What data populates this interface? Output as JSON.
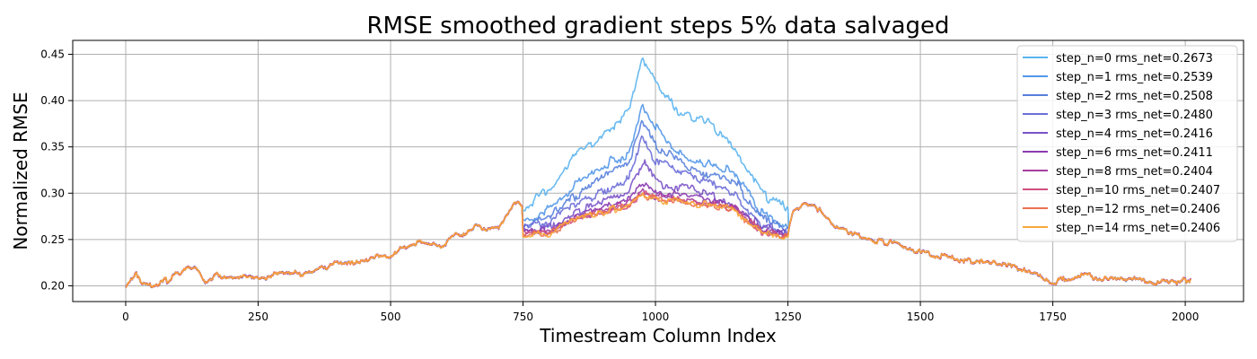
{
  "chart_data": {
    "type": "line",
    "title": "RMSE smoothed gradient steps 5% data salvaged",
    "xlabel": "Timestream Column Index",
    "ylabel": "Normalized RMSE",
    "xlim": [
      -100,
      2110
    ],
    "ylim": [
      0.183,
      0.465
    ],
    "xticks": [
      0,
      250,
      500,
      750,
      1000,
      1250,
      1500,
      1750,
      2000
    ],
    "yticks": [
      0.2,
      0.25,
      0.3,
      0.35,
      0.4,
      0.45
    ],
    "grid": true,
    "legend_position": "top-right",
    "base_curve": {
      "x": [
        0,
        20,
        30,
        60,
        90,
        130,
        150,
        170,
        200,
        260,
        300,
        330,
        400,
        430,
        460,
        500,
        520,
        550,
        600,
        620,
        640,
        660,
        680,
        700,
        720,
        740,
        750,
        1250,
        1260,
        1280,
        1300,
        1330,
        1350,
        1400,
        1450,
        1500,
        1550,
        1600,
        1650,
        1700,
        1750,
        1800,
        1850,
        1900,
        1950,
        2000,
        2010
      ],
      "y": [
        0.198,
        0.213,
        0.205,
        0.2,
        0.21,
        0.22,
        0.203,
        0.212,
        0.21,
        0.209,
        0.216,
        0.212,
        0.225,
        0.224,
        0.229,
        0.232,
        0.24,
        0.247,
        0.242,
        0.258,
        0.253,
        0.263,
        0.259,
        0.261,
        0.278,
        0.291,
        0.283,
        0.259,
        0.28,
        0.29,
        0.287,
        0.268,
        0.262,
        0.251,
        0.245,
        0.236,
        0.231,
        0.226,
        0.223,
        0.216,
        0.203,
        0.212,
        0.206,
        0.208,
        0.203,
        0.205,
        0.207
      ]
    },
    "series": [
      {
        "name": "step_n=0 rms_net=0.2673",
        "color": "#5ab4f0",
        "profile": [
          [
            750,
            0.283
          ],
          [
            800,
            0.305
          ],
          [
            850,
            0.342
          ],
          [
            900,
            0.362
          ],
          [
            950,
            0.388
          ],
          [
            975,
            0.445
          ],
          [
            1000,
            0.42
          ],
          [
            1050,
            0.385
          ],
          [
            1100,
            0.376
          ],
          [
            1150,
            0.346
          ],
          [
            1200,
            0.3
          ],
          [
            1250,
            0.283
          ]
        ]
      },
      {
        "name": "step_n=1 rms_net=0.2539",
        "color": "#5297e8",
        "profile": [
          [
            750,
            0.271
          ],
          [
            800,
            0.282
          ],
          [
            850,
            0.312
          ],
          [
            900,
            0.33
          ],
          [
            950,
            0.342
          ],
          [
            975,
            0.396
          ],
          [
            1000,
            0.37
          ],
          [
            1050,
            0.34
          ],
          [
            1100,
            0.333
          ],
          [
            1150,
            0.322
          ],
          [
            1200,
            0.278
          ],
          [
            1250,
            0.264
          ]
        ]
      },
      {
        "name": "step_n=2 rms_net=0.2508",
        "color": "#587fdc",
        "profile": [
          [
            750,
            0.266
          ],
          [
            800,
            0.275
          ],
          [
            850,
            0.298
          ],
          [
            900,
            0.316
          ],
          [
            950,
            0.332
          ],
          [
            975,
            0.378
          ],
          [
            1000,
            0.352
          ],
          [
            1050,
            0.332
          ],
          [
            1100,
            0.322
          ],
          [
            1150,
            0.312
          ],
          [
            1200,
            0.271
          ],
          [
            1250,
            0.261
          ]
        ]
      },
      {
        "name": "step_n=3 rms_net=0.2480",
        "color": "#6c6ed8",
        "profile": [
          [
            750,
            0.263
          ],
          [
            800,
            0.268
          ],
          [
            850,
            0.288
          ],
          [
            900,
            0.302
          ],
          [
            950,
            0.318
          ],
          [
            975,
            0.362
          ],
          [
            1000,
            0.336
          ],
          [
            1050,
            0.323
          ],
          [
            1100,
            0.312
          ],
          [
            1150,
            0.3
          ],
          [
            1200,
            0.265
          ],
          [
            1250,
            0.258
          ]
        ]
      },
      {
        "name": "step_n=4 rms_net=0.2416",
        "color": "#7a52c8",
        "profile": [
          [
            750,
            0.259
          ],
          [
            800,
            0.262
          ],
          [
            850,
            0.28
          ],
          [
            900,
            0.29
          ],
          [
            950,
            0.3
          ],
          [
            975,
            0.335
          ],
          [
            1000,
            0.312
          ],
          [
            1050,
            0.306
          ],
          [
            1100,
            0.298
          ],
          [
            1150,
            0.288
          ],
          [
            1200,
            0.262
          ],
          [
            1250,
            0.256
          ]
        ]
      },
      {
        "name": "step_n=6 rms_net=0.2411",
        "color": "#8a3ab0",
        "profile": [
          [
            750,
            0.258
          ],
          [
            800,
            0.259
          ],
          [
            850,
            0.276
          ],
          [
            900,
            0.284
          ],
          [
            950,
            0.295
          ],
          [
            975,
            0.312
          ],
          [
            1000,
            0.3
          ],
          [
            1050,
            0.298
          ],
          [
            1100,
            0.292
          ],
          [
            1150,
            0.284
          ],
          [
            1200,
            0.261
          ],
          [
            1250,
            0.255
          ]
        ]
      },
      {
        "name": "step_n=8 rms_net=0.2404",
        "color": "#a63ea0",
        "profile": [
          [
            750,
            0.257
          ],
          [
            800,
            0.258
          ],
          [
            850,
            0.274
          ],
          [
            900,
            0.281
          ],
          [
            950,
            0.29
          ],
          [
            975,
            0.303
          ],
          [
            1000,
            0.296
          ],
          [
            1050,
            0.294
          ],
          [
            1100,
            0.289
          ],
          [
            1150,
            0.283
          ],
          [
            1200,
            0.26
          ],
          [
            1250,
            0.254
          ]
        ]
      },
      {
        "name": "step_n=10 rms_net=0.2407",
        "color": "#d05080",
        "profile": [
          [
            750,
            0.256
          ],
          [
            800,
            0.257
          ],
          [
            850,
            0.273
          ],
          [
            900,
            0.28
          ],
          [
            950,
            0.288
          ],
          [
            975,
            0.3
          ],
          [
            1000,
            0.294
          ],
          [
            1050,
            0.292
          ],
          [
            1100,
            0.288
          ],
          [
            1150,
            0.282
          ],
          [
            1200,
            0.259
          ],
          [
            1250,
            0.254
          ]
        ]
      },
      {
        "name": "step_n=12 rms_net=0.2406",
        "color": "#ec7050",
        "profile": [
          [
            750,
            0.256
          ],
          [
            800,
            0.256
          ],
          [
            850,
            0.272
          ],
          [
            900,
            0.279
          ],
          [
            950,
            0.287
          ],
          [
            975,
            0.298
          ],
          [
            1000,
            0.293
          ],
          [
            1050,
            0.291
          ],
          [
            1100,
            0.287
          ],
          [
            1150,
            0.281
          ],
          [
            1200,
            0.258
          ],
          [
            1250,
            0.253
          ]
        ]
      },
      {
        "name": "step_n=14 rms_net=0.2406",
        "color": "#f8a83a",
        "profile": [
          [
            750,
            0.256
          ],
          [
            800,
            0.256
          ],
          [
            850,
            0.272
          ],
          [
            900,
            0.279
          ],
          [
            950,
            0.287
          ],
          [
            975,
            0.297
          ],
          [
            1000,
            0.293
          ],
          [
            1050,
            0.291
          ],
          [
            1100,
            0.287
          ],
          [
            1150,
            0.281
          ],
          [
            1200,
            0.258
          ],
          [
            1250,
            0.253
          ]
        ]
      }
    ]
  }
}
